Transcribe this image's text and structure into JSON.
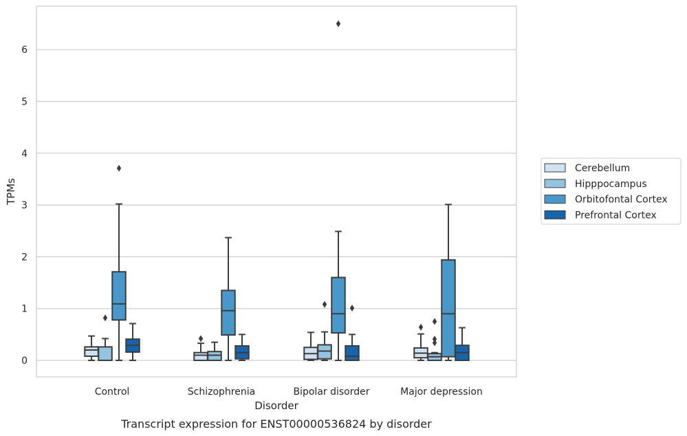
{
  "caption": "Transcript expression for ENST00000536824 by disorder",
  "chart_data": {
    "type": "box",
    "title": "",
    "xlabel": "Disorder",
    "ylabel": "TPMs",
    "ylim": [
      -0.32,
      6.85
    ],
    "yticks": [
      0,
      1,
      2,
      3,
      4,
      5,
      6
    ],
    "grid": "horizontal",
    "legend_position": "right",
    "categories": [
      "Control",
      "Schizophrenia",
      "Bipolar disorder",
      "Major depression"
    ],
    "series": [
      {
        "name": "Cerebellum",
        "color": "#d0e1f2",
        "boxes": [
          {
            "whislo": 0.0,
            "q1": 0.08,
            "med": 0.2,
            "q3": 0.26,
            "whishi": 0.47,
            "fliers": []
          },
          {
            "whislo": 0.0,
            "q1": 0.0,
            "med": 0.1,
            "q3": 0.15,
            "whishi": 0.33,
            "fliers": [
              0.42
            ]
          },
          {
            "whislo": 0.0,
            "q1": 0.02,
            "med": 0.13,
            "q3": 0.25,
            "whishi": 0.54,
            "fliers": []
          },
          {
            "whislo": 0.0,
            "q1": 0.05,
            "med": 0.14,
            "q3": 0.24,
            "whishi": 0.51,
            "fliers": [
              0.64
            ]
          }
        ]
      },
      {
        "name": "Hipppocampus",
        "color": "#94c4df",
        "boxes": [
          {
            "whislo": 0.0,
            "q1": 0.0,
            "med": 0.0,
            "q3": 0.26,
            "whishi": 0.42,
            "fliers": [
              0.82
            ]
          },
          {
            "whislo": 0.0,
            "q1": 0.0,
            "med": 0.1,
            "q3": 0.17,
            "whishi": 0.35,
            "fliers": []
          },
          {
            "whislo": 0.0,
            "q1": 0.03,
            "med": 0.18,
            "q3": 0.3,
            "whishi": 0.55,
            "fliers": [
              1.08
            ]
          },
          {
            "whislo": 0.0,
            "q1": 0.0,
            "med": 0.07,
            "q3": 0.13,
            "whishi": 0.15,
            "fliers": [
              0.34,
              0.41,
              0.75
            ]
          }
        ]
      },
      {
        "name": "Orbitofontal Cortex",
        "color": "#4a98c9",
        "boxes": [
          {
            "whislo": 0.0,
            "q1": 0.78,
            "med": 1.09,
            "q3": 1.71,
            "whishi": 3.02,
            "fliers": [
              3.71
            ]
          },
          {
            "whislo": 0.0,
            "q1": 0.49,
            "med": 0.96,
            "q3": 1.35,
            "whishi": 2.37,
            "fliers": []
          },
          {
            "whislo": 0.0,
            "q1": 0.53,
            "med": 0.9,
            "q3": 1.6,
            "whishi": 2.49,
            "fliers": [
              6.5
            ]
          },
          {
            "whislo": 0.0,
            "q1": 0.07,
            "med": 0.9,
            "q3": 1.94,
            "whishi": 3.01,
            "fliers": []
          }
        ]
      },
      {
        "name": "Prefrontal Cortex",
        "color": "#1764ab",
        "boxes": [
          {
            "whislo": 0.0,
            "q1": 0.16,
            "med": 0.29,
            "q3": 0.41,
            "whishi": 0.71,
            "fliers": []
          },
          {
            "whislo": 0.0,
            "q1": 0.03,
            "med": 0.15,
            "q3": 0.28,
            "whishi": 0.5,
            "fliers": []
          },
          {
            "whislo": 0.0,
            "q1": 0.0,
            "med": 0.08,
            "q3": 0.28,
            "whishi": 0.5,
            "fliers": [
              1.01
            ]
          },
          {
            "whislo": 0.0,
            "q1": 0.0,
            "med": 0.15,
            "q3": 0.29,
            "whishi": 0.63,
            "fliers": []
          }
        ]
      }
    ]
  }
}
